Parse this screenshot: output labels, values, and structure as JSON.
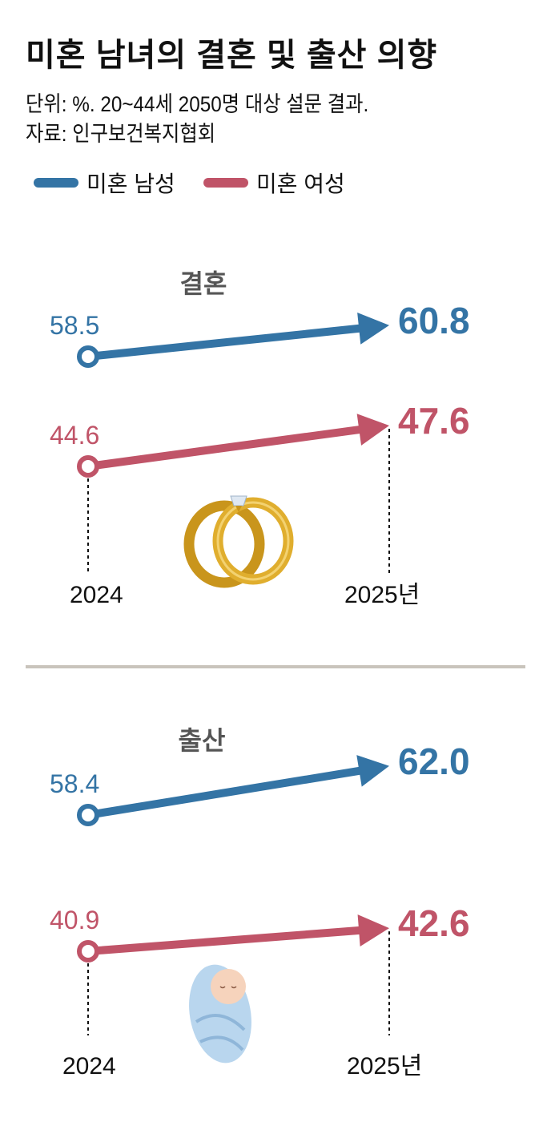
{
  "title": "미혼 남녀의 결혼 및 출산 의향",
  "unit_note": "단위: %. 20~44세 2050명 대상 설문 결과.",
  "source": "자료: 인구보건복지협회",
  "legend": [
    {
      "label": "미혼 남성",
      "color": "#3474a5"
    },
    {
      "label": "미혼 여성",
      "color": "#c05468"
    }
  ],
  "chart_data": [
    {
      "type": "line",
      "title": "결혼",
      "x": [
        "2024",
        "2025년"
      ],
      "series": [
        {
          "name": "미혼 남성",
          "values": [
            58.5,
            60.8
          ],
          "color": "#3474a5"
        },
        {
          "name": "미혼 여성",
          "values": [
            44.6,
            47.6
          ],
          "color": "#c05468"
        }
      ],
      "icon": "wedding-rings-icon"
    },
    {
      "type": "line",
      "title": "출산",
      "x": [
        "2024",
        "2025년"
      ],
      "series": [
        {
          "name": "미혼 남성",
          "values": [
            58.4,
            62.0
          ],
          "color": "#3474a5"
        },
        {
          "name": "미혼 여성",
          "values": [
            40.9,
            42.6
          ],
          "color": "#c05468"
        }
      ],
      "icon": "swaddled-baby-icon"
    }
  ]
}
